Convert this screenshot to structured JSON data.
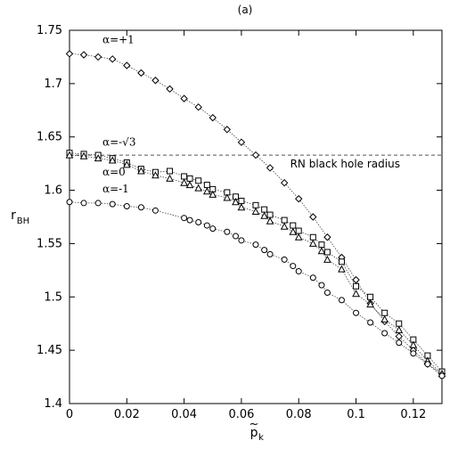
{
  "chart_data": {
    "type": "scatter",
    "title": "(a)",
    "ylabel": "r_BH",
    "xlabel": "p̃_k",
    "xlim": [
      0,
      0.13
    ],
    "ylim": [
      1.4,
      1.75
    ],
    "xticks": [
      0,
      0.02,
      0.04,
      0.06,
      0.08,
      0.1,
      0.12
    ],
    "xtick_labels": [
      "0",
      "0.02",
      "0.04",
      "0.06",
      "0.08",
      "0.1",
      "0.12"
    ],
    "yticks": [
      1.4,
      1.45,
      1.5,
      1.55,
      1.6,
      1.65,
      1.7,
      1.75
    ],
    "ytick_labels": [
      "1.4",
      "1.45",
      "1.5",
      "1.55",
      "1.6",
      "1.65",
      "1.7",
      "1.75"
    ],
    "reference_line": {
      "label": "RN black hole radius",
      "y": 1.633
    },
    "series": [
      {
        "name": "α=+1",
        "marker": "diamond",
        "x": [
          0,
          0.005,
          0.01,
          0.015,
          0.02,
          0.025,
          0.03,
          0.035,
          0.04,
          0.045,
          0.05,
          0.055,
          0.06,
          0.065,
          0.07,
          0.075,
          0.08,
          0.085,
          0.09,
          0.095,
          0.1,
          0.105,
          0.11,
          0.115,
          0.12,
          0.125,
          0.13
        ],
        "values": [
          1.728,
          1.727,
          1.725,
          1.723,
          1.717,
          1.71,
          1.703,
          1.695,
          1.686,
          1.678,
          1.668,
          1.657,
          1.645,
          1.633,
          1.621,
          1.607,
          1.592,
          1.575,
          1.556,
          1.537,
          1.516,
          1.494,
          1.477,
          1.463,
          1.45,
          1.437,
          1.428
        ]
      },
      {
        "name": "α=-√3",
        "marker": "square",
        "x": [
          0,
          0.005,
          0.01,
          0.015,
          0.02,
          0.025,
          0.03,
          0.035,
          0.04,
          0.042,
          0.045,
          0.048,
          0.05,
          0.055,
          0.058,
          0.06,
          0.065,
          0.068,
          0.07,
          0.075,
          0.078,
          0.08,
          0.085,
          0.088,
          0.09,
          0.095,
          0.1,
          0.105,
          0.11,
          0.115,
          0.12,
          0.125,
          0.13
        ],
        "values": [
          1.635,
          1.634,
          1.633,
          1.63,
          1.626,
          1.62,
          1.617,
          1.618,
          1.613,
          1.611,
          1.609,
          1.605,
          1.601,
          1.598,
          1.594,
          1.59,
          1.586,
          1.582,
          1.577,
          1.572,
          1.567,
          1.562,
          1.556,
          1.549,
          1.542,
          1.533,
          1.51,
          1.5,
          1.485,
          1.475,
          1.46,
          1.445,
          1.43
        ]
      },
      {
        "name": "α=0",
        "marker": "triangle",
        "x": [
          0,
          0.005,
          0.01,
          0.015,
          0.02,
          0.025,
          0.03,
          0.035,
          0.04,
          0.042,
          0.045,
          0.048,
          0.05,
          0.055,
          0.058,
          0.06,
          0.065,
          0.068,
          0.07,
          0.075,
          0.078,
          0.08,
          0.085,
          0.088,
          0.09,
          0.095,
          0.1,
          0.105,
          0.11,
          0.115,
          0.12,
          0.125,
          0.13
        ],
        "values": [
          1.633,
          1.632,
          1.63,
          1.628,
          1.624,
          1.618,
          1.614,
          1.611,
          1.607,
          1.605,
          1.602,
          1.599,
          1.596,
          1.593,
          1.589,
          1.584,
          1.58,
          1.576,
          1.571,
          1.566,
          1.561,
          1.556,
          1.55,
          1.543,
          1.535,
          1.526,
          1.503,
          1.493,
          1.479,
          1.469,
          1.455,
          1.44,
          1.428
        ]
      },
      {
        "name": "α=-1",
        "marker": "circle",
        "x": [
          0,
          0.005,
          0.01,
          0.015,
          0.02,
          0.025,
          0.03,
          0.04,
          0.042,
          0.045,
          0.048,
          0.05,
          0.055,
          0.058,
          0.06,
          0.065,
          0.068,
          0.07,
          0.075,
          0.078,
          0.08,
          0.085,
          0.088,
          0.09,
          0.095,
          0.1,
          0.105,
          0.11,
          0.115,
          0.12,
          0.125,
          0.13
        ],
        "values": [
          1.589,
          1.588,
          1.588,
          1.587,
          1.585,
          1.584,
          1.581,
          1.574,
          1.572,
          1.57,
          1.567,
          1.564,
          1.561,
          1.557,
          1.553,
          1.549,
          1.544,
          1.54,
          1.535,
          1.529,
          1.524,
          1.518,
          1.511,
          1.504,
          1.497,
          1.485,
          1.476,
          1.466,
          1.457,
          1.447,
          1.437,
          1.426
        ]
      }
    ],
    "annotations": [
      {
        "text": "α=+1",
        "x": 0.0115,
        "y": 1.738
      },
      {
        "text": "α=-√3",
        "x": 0.0115,
        "y": 1.642
      },
      {
        "text": "α=0",
        "x": 0.0115,
        "y": 1.614
      },
      {
        "text": "α=-1",
        "x": 0.0115,
        "y": 1.598
      }
    ]
  }
}
